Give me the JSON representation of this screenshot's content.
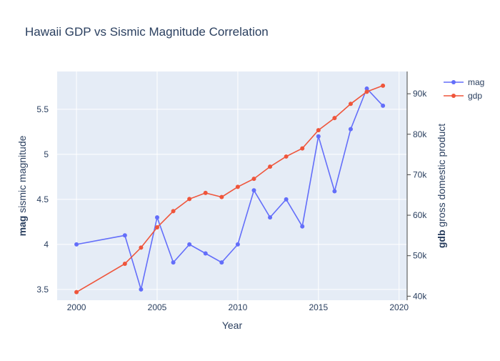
{
  "chart_data": {
    "type": "line",
    "title": "Hawaii GDP vs Sismic Magnitude Correlation",
    "xlabel": "Year",
    "ylabel_left": {
      "bold": "mag",
      "rest": " sismic magnitude"
    },
    "ylabel_right": {
      "bold": "gdb",
      "rest": " gross domestic product"
    },
    "xlim": [
      1998.8,
      2020.5
    ],
    "ylim_left": [
      3.38,
      5.92
    ],
    "ylim_right": [
      39000,
      95500
    ],
    "x_ticks": [
      2000,
      2005,
      2010,
      2015,
      2020
    ],
    "y_left_ticks": [
      {
        "value": 3.5,
        "label": "3.5"
      },
      {
        "value": 4,
        "label": "4"
      },
      {
        "value": 4.5,
        "label": "4.5"
      },
      {
        "value": 5,
        "label": "5"
      },
      {
        "value": 5.5,
        "label": "5.5"
      }
    ],
    "y_right_ticks": [
      {
        "value": 40000,
        "label": "40k"
      },
      {
        "value": 50000,
        "label": "50k"
      },
      {
        "value": 60000,
        "label": "60k"
      },
      {
        "value": 70000,
        "label": "70k"
      },
      {
        "value": 80000,
        "label": "80k"
      },
      {
        "value": 90000,
        "label": "90k"
      }
    ],
    "grid": true,
    "legend_position": "top-right",
    "series": [
      {
        "name": "mag",
        "axis": "left",
        "color": "#636efa",
        "x": [
          2000,
          2003,
          2004,
          2005,
          2006,
          2007,
          2008,
          2009,
          2010,
          2011,
          2012,
          2013,
          2014,
          2015,
          2016,
          2017,
          2018,
          2019
        ],
        "y": [
          4.0,
          4.1,
          3.5,
          4.3,
          3.8,
          4.0,
          3.9,
          3.8,
          4.0,
          4.6,
          4.3,
          4.5,
          4.2,
          5.2,
          4.59,
          5.28,
          5.73,
          5.54
        ]
      },
      {
        "name": "gdp",
        "axis": "right",
        "color": "#ef553b",
        "x": [
          2000,
          2003,
          2004,
          2005,
          2006,
          2007,
          2008,
          2009,
          2010,
          2011,
          2012,
          2013,
          2014,
          2015,
          2016,
          2017,
          2018,
          2019
        ],
        "y": [
          41000,
          48000,
          52000,
          57000,
          61000,
          64000,
          65500,
          64500,
          67000,
          69000,
          72000,
          74500,
          76500,
          81000,
          84000,
          87500,
          90500,
          92000
        ]
      }
    ]
  }
}
